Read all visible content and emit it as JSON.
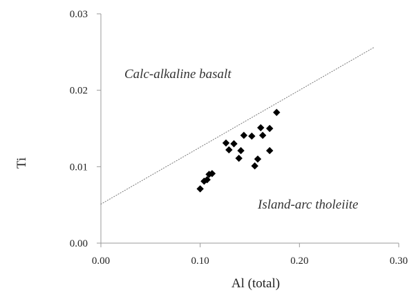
{
  "chart_data": {
    "type": "scatter",
    "title": "",
    "xlabel": "Al (total)",
    "ylabel": "Ti",
    "xlim": [
      0.0,
      0.3
    ],
    "ylim": [
      0.0,
      0.03
    ],
    "x_ticks": [
      "0.00",
      "0.10",
      "0.20",
      "0.30"
    ],
    "y_ticks": [
      "0.00",
      "0.01",
      "0.02",
      "0.03"
    ],
    "x_tick_values": [
      0.0,
      0.1,
      0.2,
      0.3
    ],
    "y_tick_values": [
      0.0,
      0.01,
      0.02,
      0.03
    ],
    "grid": false,
    "marker": "diamond",
    "series": [
      {
        "color": "#000000",
        "points": [
          {
            "x": 0.1,
            "y": 0.0071
          },
          {
            "x": 0.104,
            "y": 0.0081
          },
          {
            "x": 0.107,
            "y": 0.0083
          },
          {
            "x": 0.109,
            "y": 0.009
          },
          {
            "x": 0.112,
            "y": 0.0091
          },
          {
            "x": 0.126,
            "y": 0.0131
          },
          {
            "x": 0.129,
            "y": 0.0122
          },
          {
            "x": 0.134,
            "y": 0.013
          },
          {
            "x": 0.139,
            "y": 0.0111
          },
          {
            "x": 0.141,
            "y": 0.0121
          },
          {
            "x": 0.144,
            "y": 0.0141
          },
          {
            "x": 0.152,
            "y": 0.014
          },
          {
            "x": 0.155,
            "y": 0.0101
          },
          {
            "x": 0.158,
            "y": 0.011
          },
          {
            "x": 0.161,
            "y": 0.0151
          },
          {
            "x": 0.163,
            "y": 0.0141
          },
          {
            "x": 0.17,
            "y": 0.015
          },
          {
            "x": 0.17,
            "y": 0.0121
          },
          {
            "x": 0.177,
            "y": 0.0171
          }
        ]
      }
    ],
    "reference_line": {
      "style": "dotted",
      "color": "#777777",
      "from": {
        "x": 0.0,
        "y": 0.0051
      },
      "to": {
        "x": 0.275,
        "y": 0.0256
      }
    },
    "annotations": [
      {
        "text": "Calc-alkaline basalt",
        "x": 0.024,
        "y": 0.022
      },
      {
        "text": "Island-arc tholeiite",
        "x": 0.159,
        "y": 0.0047
      }
    ]
  }
}
